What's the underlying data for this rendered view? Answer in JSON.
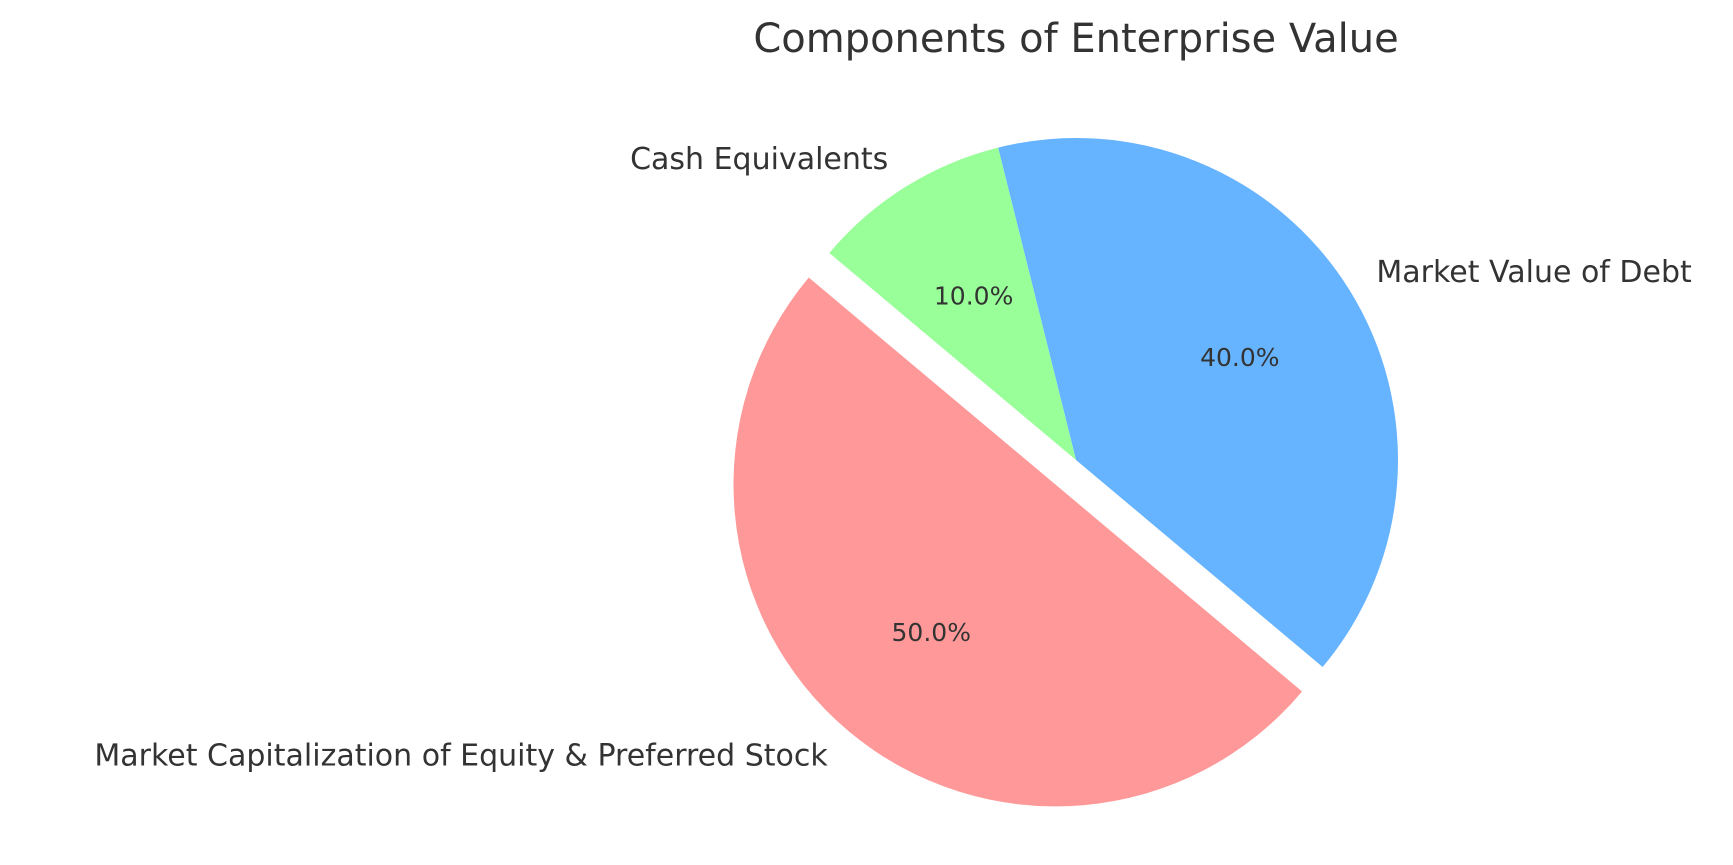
{
  "chart_data": {
    "type": "pie",
    "title": "Components of Enterprise Value",
    "categories": [
      "Market Capitalization of Equity & Preferred Stock",
      "Market Value of Debt",
      "Cash Equivalents"
    ],
    "values": [
      50,
      40,
      10
    ],
    "percent_labels": [
      "50.0%",
      "40.0%",
      "10.0%"
    ],
    "colors": [
      "#ff9999",
      "#66b3ff",
      "#99ff99"
    ],
    "exploded": [
      true,
      false,
      false
    ],
    "start_angle_deg": 140,
    "direction": "counterclockwise"
  }
}
